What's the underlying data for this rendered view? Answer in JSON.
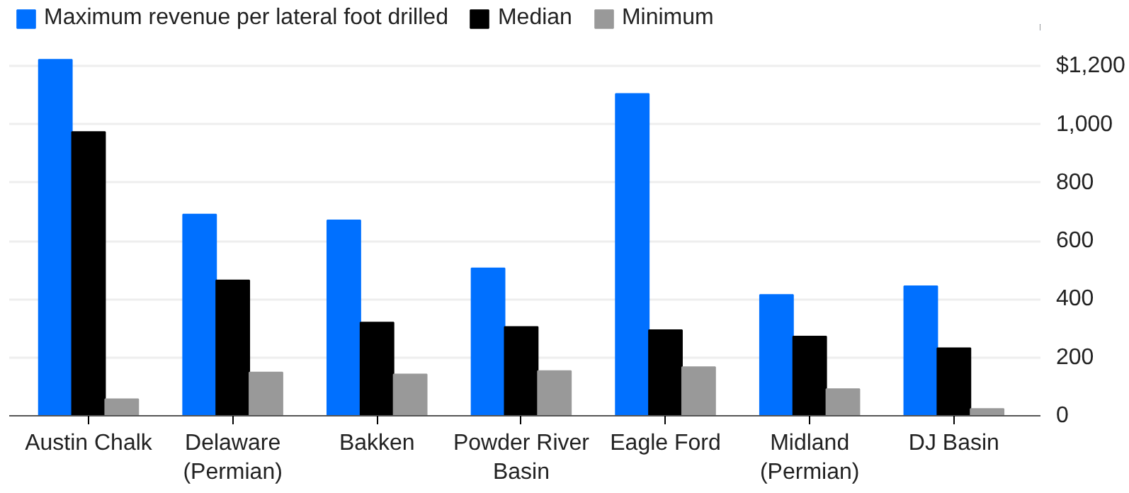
{
  "chart_data": {
    "type": "bar",
    "categories": [
      "Austin Chalk",
      "Delaware (Permian)",
      "Bakken",
      "Powder River Basin",
      "Eagle Ford",
      "Midland (Permian)",
      "DJ Basin"
    ],
    "series": [
      {
        "name": "Maximum revenue per lateral foot drilled",
        "color": "#0070ff",
        "values": [
          1222,
          691,
          671,
          506,
          1105,
          415,
          445
        ]
      },
      {
        "name": "Median",
        "color": "#000000",
        "values": [
          974,
          465,
          320,
          305,
          294,
          272,
          232
        ]
      },
      {
        "name": "Minimum",
        "color": "#999999",
        "values": [
          57,
          149,
          142,
          154,
          167,
          92,
          24
        ]
      }
    ],
    "ylim": [
      0,
      1230
    ],
    "yticks": [
      0,
      200,
      400,
      600,
      800,
      {
        "value": 1000,
        "label": "1,000"
      },
      {
        "value": 1200,
        "label": "$1,200"
      }
    ],
    "grid": "y",
    "legend": "top left"
  }
}
